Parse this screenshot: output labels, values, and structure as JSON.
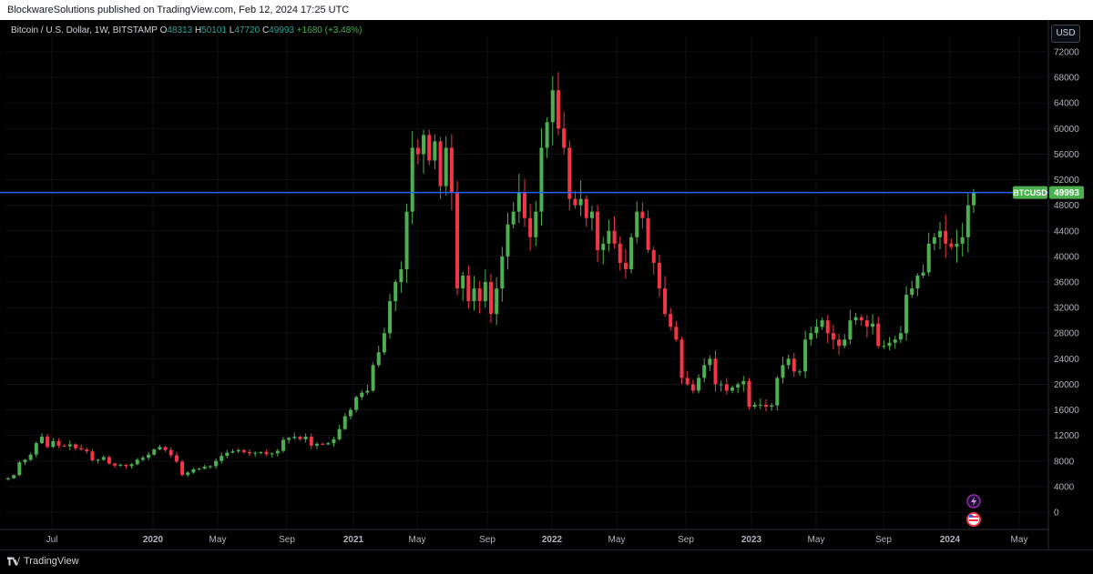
{
  "header": {
    "published": "BlockwareSolutions published on TradingView.com, Feb 12, 2024 17:25 UTC"
  },
  "legend": {
    "symbol": "Bitcoin / U.S. Dollar, 1W, BITSTAMP",
    "o_label": "O",
    "o_value": "48313",
    "h_label": "H",
    "h_value": "50101",
    "l_label": "L",
    "l_value": "47720",
    "c_label": "C",
    "c_value": "49993",
    "change": "+1680 (+3.48%)"
  },
  "currency_button": "USD",
  "price_label": {
    "symbol": "BTCUSD",
    "value": "49993"
  },
  "footer": {
    "brand": "TradingView"
  },
  "colors": {
    "up": "#4caf50",
    "down": "#f23645",
    "line": "#2962ff",
    "label_bg": "#4caf50"
  },
  "chart_data": {
    "type": "candlestick",
    "timeframe": "1W",
    "yaxis_ticks": [
      "72000",
      "68000",
      "64000",
      "60000",
      "56000",
      "52000",
      "48000",
      "44000",
      "40000",
      "36000",
      "32000",
      "28000",
      "24000",
      "20000",
      "16000",
      "12000",
      "8000",
      "4000",
      "0"
    ],
    "ylim": [
      0,
      72000
    ],
    "xaxis_ticks": [
      "Jul",
      "2020",
      "May",
      "Sep",
      "2021",
      "May",
      "Sep",
      "2022",
      "May",
      "Sep",
      "2023",
      "May",
      "Sep",
      "2024",
      "May"
    ],
    "horizontal_line": {
      "value": 49993,
      "label": "BTCUSD"
    },
    "last_close": 49993,
    "approx_weekly_closes": [
      5300,
      5800,
      7800,
      8200,
      9000,
      10800,
      11800,
      10200,
      11100,
      10400,
      10300,
      10600,
      10000,
      9800,
      9500,
      8100,
      8200,
      8600,
      7600,
      7300,
      7400,
      7200,
      7500,
      8200,
      8500,
      9000,
      9800,
      10200,
      9700,
      8900,
      7900,
      5800,
      6200,
      6700,
      6800,
      7100,
      7200,
      8000,
      8800,
      9300,
      9500,
      9700,
      9400,
      9200,
      9300,
      9400,
      9100,
      9200,
      9600,
      11300,
      11600,
      11800,
      11400,
      11800,
      10400,
      10700,
      10600,
      10800,
      11400,
      13000,
      15000,
      16000,
      18000,
      18700,
      19000,
      23000,
      25000,
      28000,
      33000,
      36000,
      38000,
      47000,
      57000,
      56000,
      59000,
      55000,
      58000,
      51000,
      57000,
      50000,
      35000,
      37000,
      33000,
      35000,
      33000,
      36000,
      31000,
      35000,
      40000,
      45000,
      47000,
      50000,
      46000,
      43000,
      47000,
      57000,
      61000,
      66000,
      60000,
      57000,
      49000,
      48000,
      49000,
      46000,
      47000,
      41000,
      42000,
      44000,
      42000,
      39000,
      38000,
      43000,
      47000,
      46000,
      41000,
      39000,
      35000,
      31000,
      29000,
      27000,
      21000,
      20000,
      19000,
      21000,
      23000,
      24000,
      20000,
      20000,
      19000,
      19500,
      20000,
      20500,
      16500,
      16800,
      16800,
      16500,
      16700,
      21000,
      23000,
      24000,
      22000,
      22000,
      27000,
      28000,
      29000,
      30000,
      28000,
      27000,
      26000,
      27000,
      30000,
      30500,
      30000,
      29000,
      29500,
      26000,
      26000,
      26500,
      27000,
      28000,
      34000,
      35000,
      37000,
      37500,
      42000,
      43000,
      44000,
      42000,
      41500,
      42000,
      43000,
      48000,
      49993
    ]
  }
}
